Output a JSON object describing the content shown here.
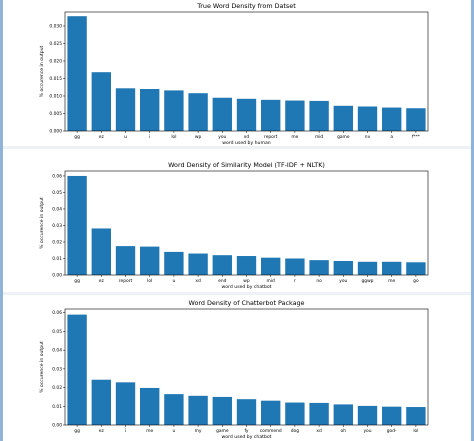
{
  "chart_data": [
    {
      "type": "bar",
      "title": "True Word Density from Datset",
      "xlabel": "word used by human",
      "ylabel": "% occurence in output",
      "categories": [
        "gg",
        "ez",
        "u",
        "i",
        "lol",
        "wp",
        "you",
        "xd",
        "report",
        "me",
        "mid",
        "game",
        "nv",
        "a",
        "f***"
      ],
      "values": [
        0.0328,
        0.0168,
        0.0122,
        0.012,
        0.0116,
        0.0108,
        0.0095,
        0.0092,
        0.0089,
        0.0087,
        0.0086,
        0.0072,
        0.007,
        0.0067,
        0.0065
      ],
      "ylim": [
        0,
        0.034
      ],
      "yticks": [
        0.0,
        0.005,
        0.01,
        0.015,
        0.02,
        0.025,
        0.03
      ],
      "yticklabels": [
        "0.000",
        "0.005",
        "0.010",
        "0.015",
        "0.020",
        "0.025",
        "0.030"
      ]
    },
    {
      "type": "bar",
      "title": "Word Density of Similarity Model (TF-IDF + NLTK)",
      "xlabel": "word used by chatbot",
      "ylabel": "% occurence in output",
      "categories": [
        "gg",
        "ez",
        "report",
        "lol",
        "u",
        "xd",
        "end",
        "wp",
        "mid",
        "r",
        "no",
        "you",
        "ggwp",
        "me",
        "go"
      ],
      "values": [
        0.06,
        0.0282,
        0.0175,
        0.0172,
        0.014,
        0.013,
        0.012,
        0.0115,
        0.0105,
        0.01,
        0.009,
        0.0085,
        0.008,
        0.008,
        0.0077
      ],
      "ylim": [
        0,
        0.063
      ],
      "yticks": [
        0.0,
        0.01,
        0.02,
        0.03,
        0.04,
        0.05,
        0.06
      ],
      "yticklabels": [
        "0.00",
        "0.01",
        "0.02",
        "0.03",
        "0.04",
        "0.05",
        "0.06"
      ]
    },
    {
      "type": "bar",
      "title": "Word Density of Chatterbot Package",
      "xlabel": "word used by chatbot",
      "ylabel": "% occurence in output",
      "categories": [
        "gg",
        "ez",
        "i",
        "me",
        "u",
        "my",
        "game",
        "fy",
        "commend",
        "dog",
        "xd",
        "oh",
        "you",
        "god-",
        "lol"
      ],
      "values": [
        0.059,
        0.0242,
        0.0228,
        0.0198,
        0.0165,
        0.0156,
        0.015,
        0.0138,
        0.013,
        0.012,
        0.0118,
        0.011,
        0.0102,
        0.0098,
        0.0096
      ],
      "ylim": [
        0,
        0.062
      ],
      "yticks": [
        0.0,
        0.01,
        0.02,
        0.03,
        0.04,
        0.05,
        0.06
      ],
      "yticklabels": [
        "0.00",
        "0.01",
        "0.02",
        "0.03",
        "0.04",
        "0.05",
        "0.06"
      ]
    }
  ],
  "colors": {
    "bar": "#1f77b4",
    "frame": "#8fb3d9",
    "separator": "#eef1f5"
  }
}
